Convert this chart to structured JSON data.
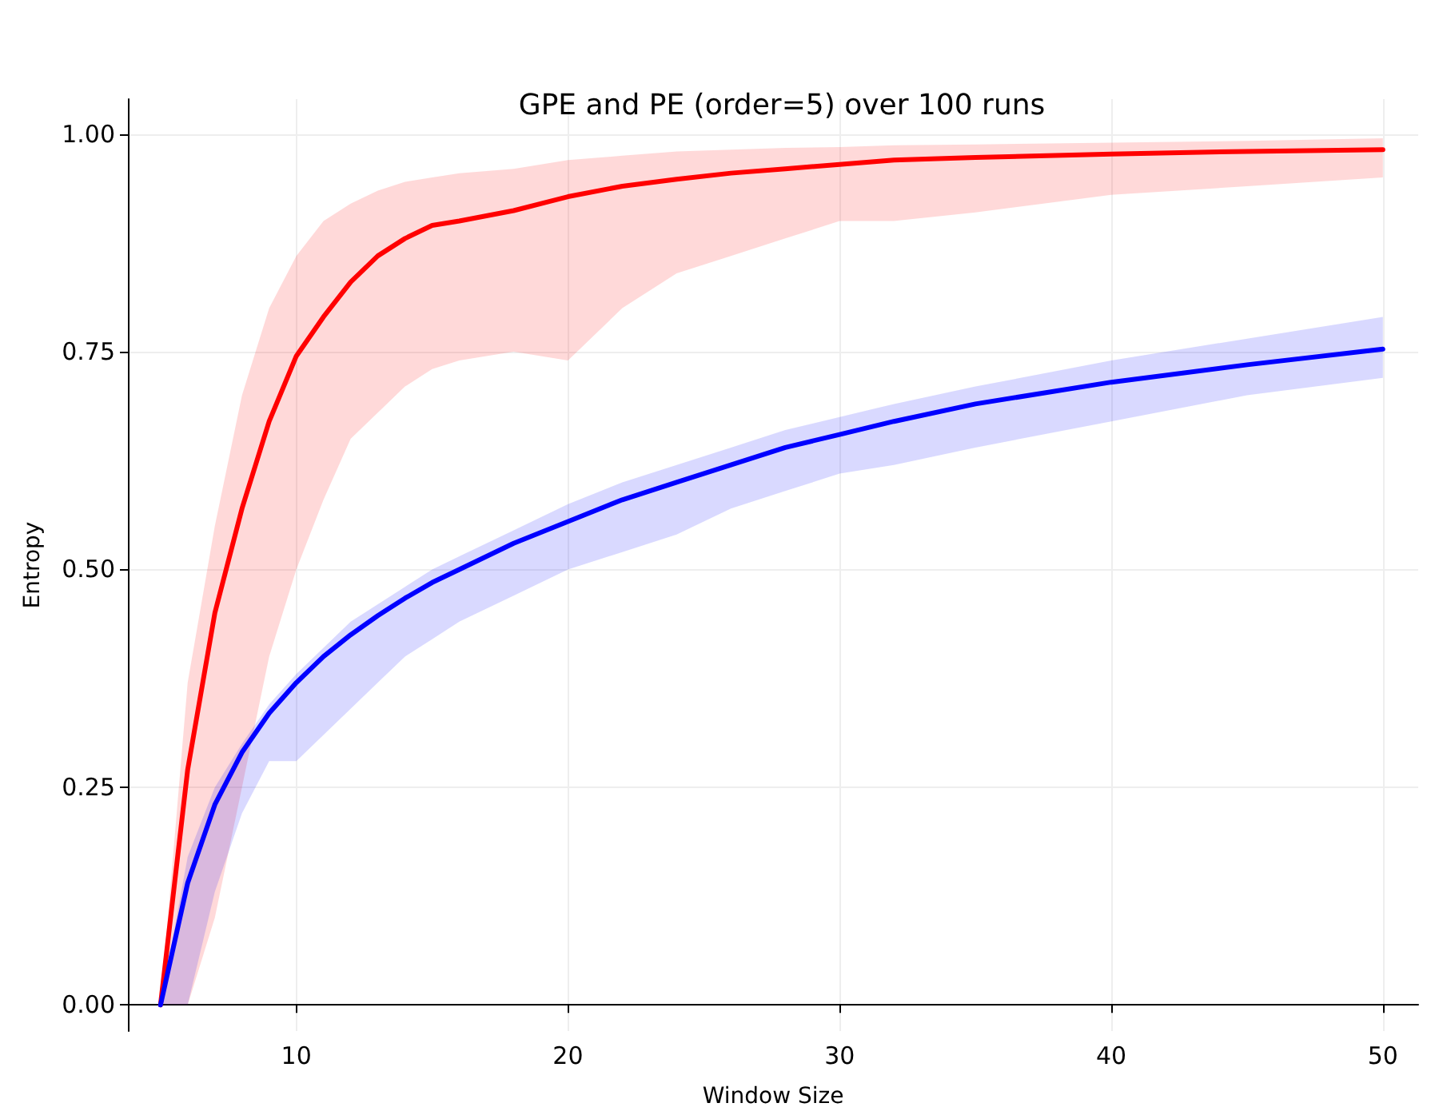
{
  "chart_data": {
    "type": "line",
    "title": "GPE and PE (order=5) over 100 runs",
    "xlabel": "Window Size",
    "ylabel": "Entropy",
    "x": [
      5,
      6,
      7,
      8,
      9,
      10,
      11,
      12,
      13,
      14,
      15,
      16,
      18,
      20,
      22,
      24,
      26,
      28,
      30,
      32,
      35,
      40,
      45,
      50
    ],
    "series": [
      {
        "color": "#ff0000",
        "values": [
          0,
          0.27,
          0.45,
          0.57,
          0.67,
          0.745,
          0.79,
          0.83,
          0.86,
          0.88,
          0.895,
          0.9,
          0.912,
          0.928,
          0.94,
          0.948,
          0.955,
          0.96,
          0.965,
          0.97,
          0.973,
          0.977,
          0.98,
          0.982
        ],
        "lower": [
          0,
          0,
          0.1,
          0.25,
          0.4,
          0.5,
          0.58,
          0.65,
          0.68,
          0.71,
          0.73,
          0.74,
          0.75,
          0.74,
          0.8,
          0.84,
          0.86,
          0.88,
          0.9,
          0.9,
          0.91,
          0.93,
          0.94,
          0.95
        ],
        "upper": [
          0,
          0.37,
          0.55,
          0.7,
          0.8,
          0.86,
          0.9,
          0.92,
          0.935,
          0.945,
          0.95,
          0.955,
          0.96,
          0.97,
          0.975,
          0.98,
          0.982,
          0.984,
          0.985,
          0.987,
          0.988,
          0.99,
          0.992,
          0.995
        ]
      },
      {
        "color": "#0000ff",
        "values": [
          0,
          0.14,
          0.23,
          0.29,
          0.335,
          0.37,
          0.4,
          0.425,
          0.447,
          0.467,
          0.485,
          0.5,
          0.53,
          0.555,
          0.58,
          0.6,
          0.62,
          0.64,
          0.655,
          0.67,
          0.69,
          0.715,
          0.735,
          0.753
        ],
        "lower": [
          0,
          0,
          0.13,
          0.22,
          0.28,
          0.28,
          0.31,
          0.34,
          0.37,
          0.4,
          0.42,
          0.44,
          0.47,
          0.5,
          0.52,
          0.54,
          0.57,
          0.59,
          0.61,
          0.62,
          0.64,
          0.67,
          0.7,
          0.72
        ],
        "upper": [
          0,
          0.17,
          0.25,
          0.3,
          0.345,
          0.38,
          0.41,
          0.44,
          0.46,
          0.48,
          0.5,
          0.515,
          0.545,
          0.575,
          0.6,
          0.62,
          0.64,
          0.66,
          0.675,
          0.69,
          0.71,
          0.74,
          0.765,
          0.79
        ]
      }
    ],
    "xlim": [
      3.8,
      51.3
    ],
    "xticks": [
      10,
      20,
      30,
      40,
      50
    ],
    "ylim": [
      -0.03,
      1.04
    ],
    "yticks": [
      {
        "value": 0,
        "label": "0.00"
      },
      0.25,
      {
        "value": 0.5,
        "label": "0.50"
      },
      0.75,
      {
        "value": 1,
        "label": "1.00"
      }
    ],
    "grid": true,
    "marker": "none",
    "line_style": "solid"
  }
}
